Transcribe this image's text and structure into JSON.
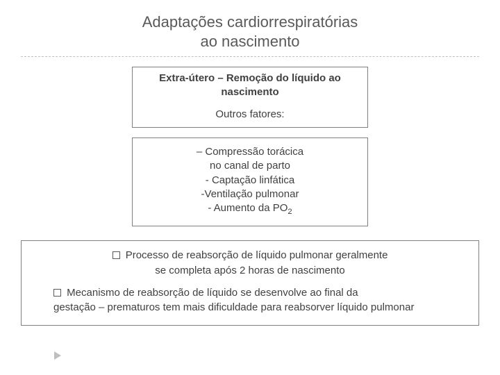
{
  "title_line1": "Adaptações cardiorrespiratórias",
  "title_line2": "ao nascimento",
  "box1": {
    "heading_line1": "Extra-útero – Remoção do líquido ao",
    "heading_line2": "nascimento",
    "sub": "Outros fatores:"
  },
  "box2": {
    "l1": "– Compressão torácica",
    "l2": "no canal de parto",
    "l3": "- Captação linfática",
    "l4": "-Ventilação pulmonar",
    "l5a": "- Aumento da PO",
    "l5b": "2"
  },
  "box3": {
    "p1a": "Processo de reabsorção de líquido  pulmonar geralmente",
    "p1b": "se completa  após 2 horas de nascimento",
    "p2a": "Mecanismo de reabsorção de líquido se desenvolve ao final da",
    "p2b": "gestação – prematuros tem mais dificuldade para reabsorver líquido pulmonar"
  },
  "colors": {
    "text": "#595959",
    "box_border": "#7f7f7f",
    "divider": "#bfbfbf",
    "arrow": "#bfbfbf",
    "background": "#ffffff"
  }
}
